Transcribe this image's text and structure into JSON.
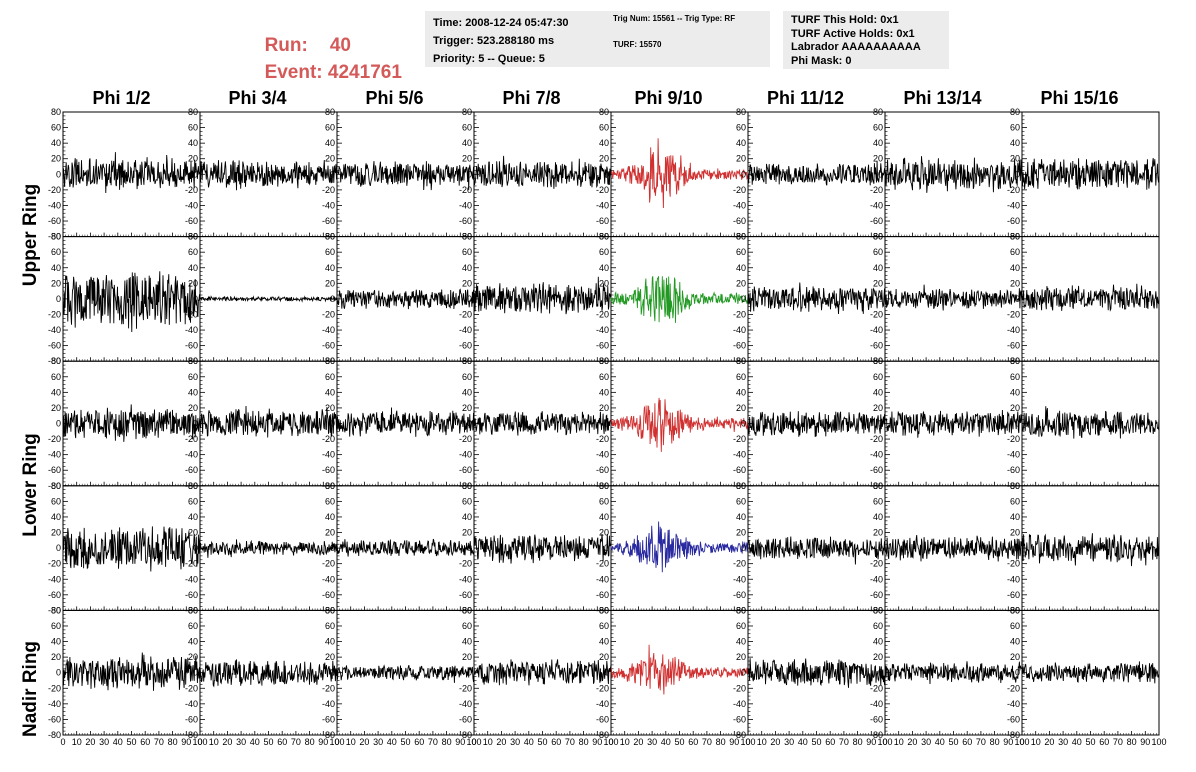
{
  "header": {
    "run_label": "Run:",
    "run_value": "40",
    "event_label": "Event:",
    "event_value": "4241761",
    "time_box": [
      "Time: 2008-12-24 05:47:30",
      "Trigger: 523.288180 ms",
      "Priority: 5 -- Queue: 5"
    ],
    "trig_box": [
      "Trig Num: 15561 -- Trig Type: RF",
      "TURF: 15570"
    ],
    "turf_box": [
      "TURF This Hold: 0x1",
      "TURF Active Holds: 0x1",
      "Labrador AAAAAAAAAA",
      "Phi Mask: 0"
    ]
  },
  "columns": [
    "Phi 1/2",
    "Phi 3/4",
    "Phi 5/6",
    "Phi 7/8",
    "Phi 9/10",
    "Phi 11/12",
    "Phi 13/14",
    "Phi 15/16"
  ],
  "ring_labels": [
    "Upper Ring",
    "Lower Ring",
    "Nadir Ring"
  ],
  "colors": {
    "red": "#d03030",
    "green": "#229922",
    "blue": "#2a2aa0",
    "black": "#000000",
    "header_red": "#d45a5a"
  },
  "chart_data": {
    "type": "line",
    "layout": "grid of 5 rows x 8 columns waveform panels",
    "xlim": [
      0,
      100
    ],
    "ylim": [
      -80,
      80
    ],
    "y_ticks": [
      -80,
      -60,
      -40,
      -20,
      0,
      20,
      40,
      60,
      80
    ],
    "x_ticks": [
      0,
      10,
      20,
      30,
      40,
      50,
      60,
      70,
      80,
      90,
      100
    ],
    "x_tick_labels": [
      "0",
      "10",
      "20",
      "30",
      "40",
      "50",
      "60",
      "70",
      "80",
      "90",
      "100"
    ],
    "samples_per_trace": 260,
    "panels": [
      {
        "row": 0,
        "col": 0,
        "color": "black",
        "amplitude": 22,
        "burst": false
      },
      {
        "row": 0,
        "col": 1,
        "color": "black",
        "amplitude": 20,
        "burst": false
      },
      {
        "row": 0,
        "col": 2,
        "color": "black",
        "amplitude": 18,
        "burst": false
      },
      {
        "row": 0,
        "col": 3,
        "color": "black",
        "amplitude": 20,
        "burst": false
      },
      {
        "row": 0,
        "col": 4,
        "color": "red",
        "amplitude": 40,
        "burst": true
      },
      {
        "row": 0,
        "col": 5,
        "color": "black",
        "amplitude": 16,
        "burst": false
      },
      {
        "row": 0,
        "col": 6,
        "color": "black",
        "amplitude": 22,
        "burst": false
      },
      {
        "row": 0,
        "col": 7,
        "color": "black",
        "amplitude": 22,
        "burst": false
      },
      {
        "row": 1,
        "col": 0,
        "color": "black",
        "amplitude": 38,
        "burst": false
      },
      {
        "row": 1,
        "col": 1,
        "color": "black",
        "amplitude": 3,
        "burst": false
      },
      {
        "row": 1,
        "col": 2,
        "color": "black",
        "amplitude": 14,
        "burst": false
      },
      {
        "row": 1,
        "col": 3,
        "color": "black",
        "amplitude": 22,
        "burst": false
      },
      {
        "row": 1,
        "col": 4,
        "color": "green",
        "amplitude": 40,
        "burst": true
      },
      {
        "row": 1,
        "col": 5,
        "color": "black",
        "amplitude": 18,
        "burst": false
      },
      {
        "row": 1,
        "col": 6,
        "color": "black",
        "amplitude": 14,
        "burst": false
      },
      {
        "row": 1,
        "col": 7,
        "color": "black",
        "amplitude": 18,
        "burst": false
      },
      {
        "row": 2,
        "col": 0,
        "color": "black",
        "amplitude": 22,
        "burst": false
      },
      {
        "row": 2,
        "col": 1,
        "color": "black",
        "amplitude": 20,
        "burst": false
      },
      {
        "row": 2,
        "col": 2,
        "color": "black",
        "amplitude": 18,
        "burst": false
      },
      {
        "row": 2,
        "col": 3,
        "color": "black",
        "amplitude": 16,
        "burst": false
      },
      {
        "row": 2,
        "col": 4,
        "color": "red",
        "amplitude": 36,
        "burst": true
      },
      {
        "row": 2,
        "col": 5,
        "color": "black",
        "amplitude": 18,
        "burst": false
      },
      {
        "row": 2,
        "col": 6,
        "color": "black",
        "amplitude": 18,
        "burst": false
      },
      {
        "row": 2,
        "col": 7,
        "color": "black",
        "amplitude": 18,
        "burst": false
      },
      {
        "row": 3,
        "col": 0,
        "color": "black",
        "amplitude": 32,
        "burst": false
      },
      {
        "row": 3,
        "col": 1,
        "color": "black",
        "amplitude": 10,
        "burst": false
      },
      {
        "row": 3,
        "col": 2,
        "color": "black",
        "amplitude": 12,
        "burst": false
      },
      {
        "row": 3,
        "col": 3,
        "color": "black",
        "amplitude": 20,
        "burst": false
      },
      {
        "row": 3,
        "col": 4,
        "color": "blue",
        "amplitude": 30,
        "burst": true
      },
      {
        "row": 3,
        "col": 5,
        "color": "black",
        "amplitude": 16,
        "burst": false
      },
      {
        "row": 3,
        "col": 6,
        "color": "black",
        "amplitude": 16,
        "burst": false
      },
      {
        "row": 3,
        "col": 7,
        "color": "black",
        "amplitude": 20,
        "burst": false
      },
      {
        "row": 4,
        "col": 0,
        "color": "black",
        "amplitude": 24,
        "burst": false
      },
      {
        "row": 4,
        "col": 1,
        "color": "black",
        "amplitude": 18,
        "burst": false
      },
      {
        "row": 4,
        "col": 2,
        "color": "black",
        "amplitude": 10,
        "burst": false
      },
      {
        "row": 4,
        "col": 3,
        "color": "black",
        "amplitude": 18,
        "burst": false
      },
      {
        "row": 4,
        "col": 4,
        "color": "red",
        "amplitude": 26,
        "burst": true
      },
      {
        "row": 4,
        "col": 5,
        "color": "black",
        "amplitude": 20,
        "burst": false
      },
      {
        "row": 4,
        "col": 6,
        "color": "black",
        "amplitude": 14,
        "burst": false
      },
      {
        "row": 4,
        "col": 7,
        "color": "black",
        "amplitude": 14,
        "burst": false
      }
    ]
  }
}
